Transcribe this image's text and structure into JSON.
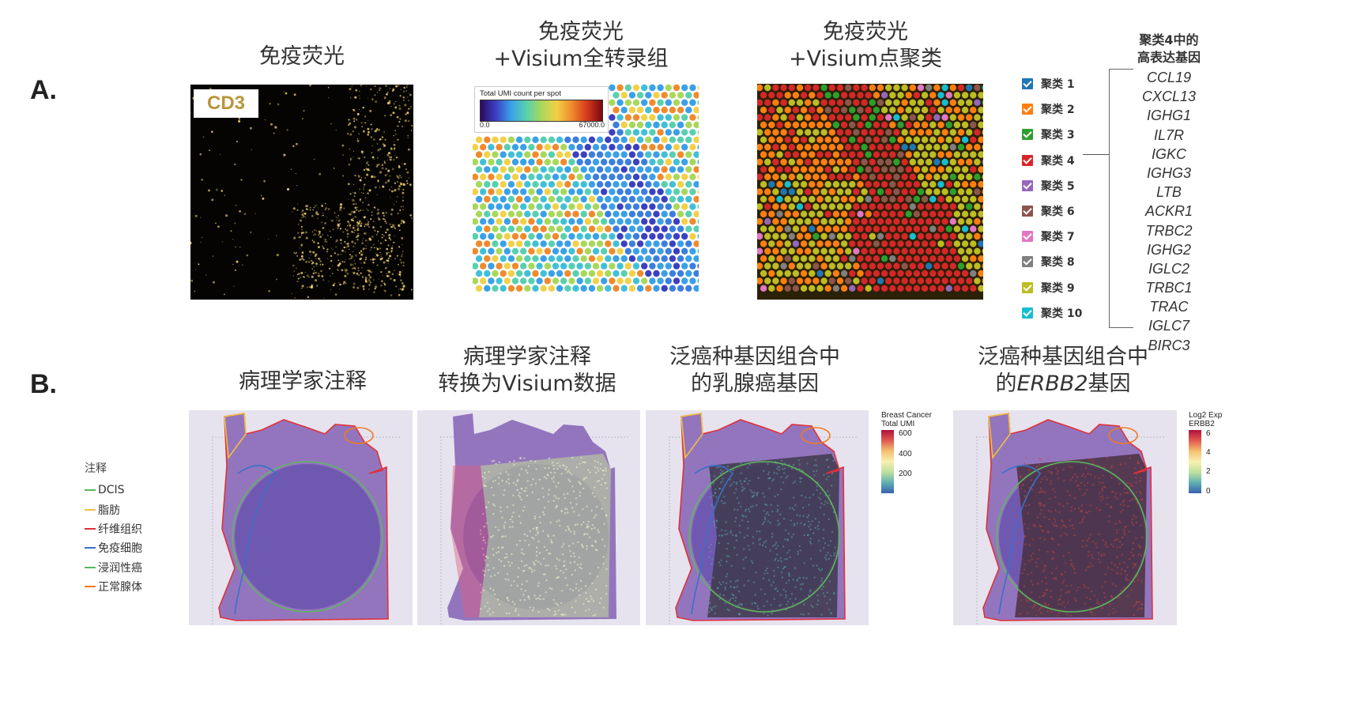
{
  "labels": {
    "a": "A.",
    "b": "B."
  },
  "row_a": {
    "titles": [
      "免疫荧光",
      "免疫荧光\n+Visium全转录组",
      "免疫荧光\n+Visium点聚类"
    ],
    "cd3_label": "CD3",
    "umi_legend": {
      "title": "Total UMI count per spot",
      "min": "0.0",
      "max": "67000.0"
    },
    "clusters_title": "聚类4中的\n高表达基因",
    "clusters": [
      {
        "label": "聚类 1",
        "color": "#1f77b4"
      },
      {
        "label": "聚类 2",
        "color": "#ff7f0e"
      },
      {
        "label": "聚类 3",
        "color": "#2ca02c"
      },
      {
        "label": "聚类 4",
        "color": "#d62728"
      },
      {
        "label": "聚类 5",
        "color": "#9467bd"
      },
      {
        "label": "聚类 6",
        "color": "#8c564b"
      },
      {
        "label": "聚类 7",
        "color": "#e377c2"
      },
      {
        "label": "聚类 8",
        "color": "#7f7f7f"
      },
      {
        "label": "聚类 9",
        "color": "#bcbd22"
      },
      {
        "label": "聚类 10",
        "color": "#17becf"
      }
    ],
    "genes": [
      "CCL19",
      "CXCL13",
      "IGHG1",
      "IL7R",
      "IGKC",
      "IGHG3",
      "LTB",
      "ACKR1",
      "TRBC2",
      "IGHG2",
      "IGLC2",
      "TRBC1",
      "TRAC",
      "IGLC7",
      "BIRC3"
    ]
  },
  "row_b": {
    "titles": [
      "病理学家注释",
      "病理学家注释\n转换为Visium数据",
      "泛癌种基因组合中\n的乳腺癌基因"
    ],
    "title4_prefix": "泛癌种基因组合中\n的",
    "title4_gene": "ERBB2",
    "title4_suffix": "基因",
    "annotation_title": "注释",
    "annotations": [
      {
        "label": "DCIS",
        "color": "#5cb85c"
      },
      {
        "label": "脂肪",
        "color": "#f0c040"
      },
      {
        "label": "纤维组织",
        "color": "#e0303a"
      },
      {
        "label": "免疫细胞",
        "color": "#3a70c8"
      },
      {
        "label": "浸润性癌",
        "color": "#5cb85c"
      },
      {
        "label": "正常腺体",
        "color": "#f07a20"
      }
    ],
    "colorbar1": {
      "title": "Breast Cancer\nTotal UMI",
      "ticks": [
        "600",
        "400",
        "200"
      ]
    },
    "colorbar2": {
      "title": "Log2 Exp\nERBB2",
      "ticks": [
        "6",
        "4",
        "2",
        "0"
      ]
    }
  }
}
